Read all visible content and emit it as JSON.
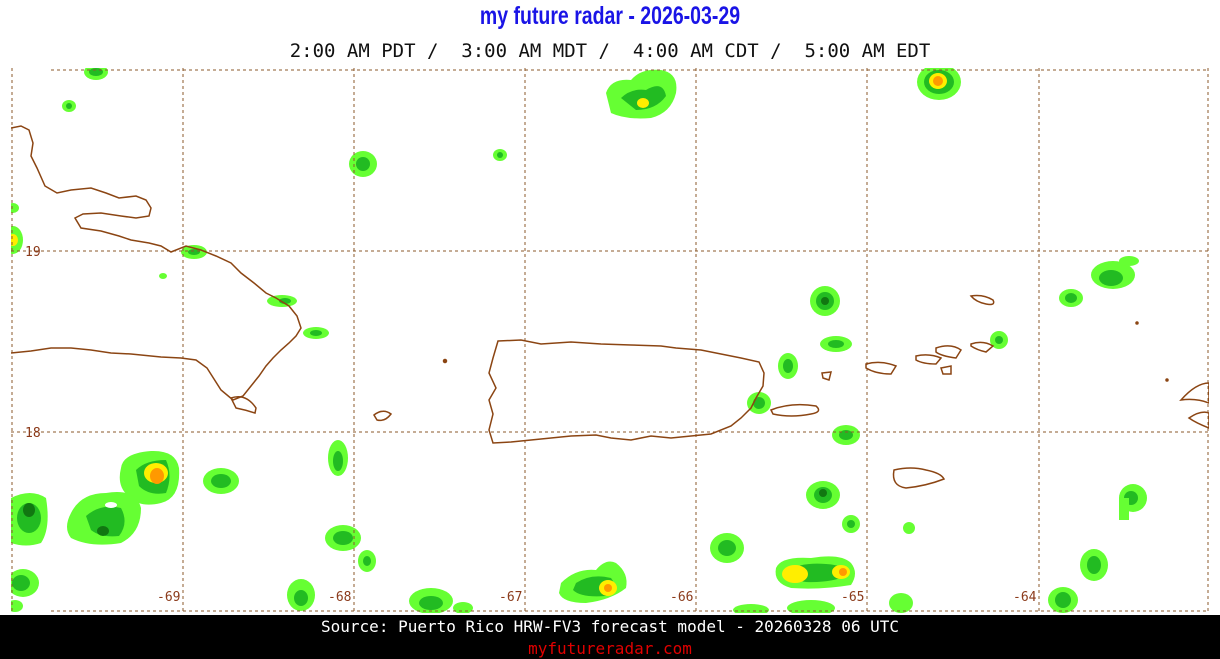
{
  "title": "my future radar - 2026-03-29",
  "time_line": "2:00 AM PDT /  3:00 AM MDT /  4:00 AM CDT /  5:00 AM EDT",
  "map": {
    "lat_labels": [
      "19",
      "18"
    ],
    "lon_labels": [
      "-69",
      "-68",
      "-67",
      "-66",
      "-65",
      "-64"
    ],
    "colors": {
      "coast": "#8b4513",
      "grid": "#8b5a2b",
      "radar_light": "#66ff33",
      "radar_mid": "#22bb22",
      "radar_dark": "#117711",
      "radar_yellow": "#ffee00",
      "radar_orange": "#ff9900",
      "radar_red": "#dd4400"
    }
  },
  "footer": {
    "source": "Source: Puerto Rico HRW-FV3 forecast model - 20260328 06 UTC",
    "site": "myfutureradar.com"
  }
}
